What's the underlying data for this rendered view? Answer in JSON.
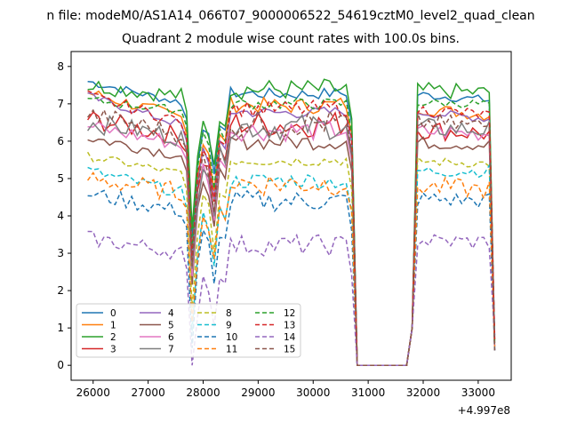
{
  "chart_data": {
    "type": "line",
    "figure_title": "n file: modeM0/AS1A14_066T07_9000006522_54619cztM0_level2_quad_clean",
    "title": "Quadrant 2 module wise count rates with 100.0s bins.",
    "xlabel": "",
    "ylabel": "",
    "x_offset_label": "+4.997e8",
    "xlim": [
      25600,
      33600
    ],
    "ylim": [
      -0.4,
      8.4
    ],
    "x_ticks": [
      {
        "value": 26000,
        "label": "26000"
      },
      {
        "value": 27000,
        "label": "27000"
      },
      {
        "value": 28000,
        "label": "28000"
      },
      {
        "value": 29000,
        "label": "29000"
      },
      {
        "value": 30000,
        "label": "30000"
      },
      {
        "value": 31000,
        "label": "31000"
      },
      {
        "value": 32000,
        "label": "32000"
      },
      {
        "value": 33000,
        "label": "33000"
      }
    ],
    "y_ticks": [
      {
        "value": 0,
        "label": "0"
      },
      {
        "value": 1,
        "label": "1"
      },
      {
        "value": 2,
        "label": "2"
      },
      {
        "value": 3,
        "label": "3"
      },
      {
        "value": 4,
        "label": "4"
      },
      {
        "value": 5,
        "label": "5"
      },
      {
        "value": 6,
        "label": "6"
      },
      {
        "value": 7,
        "label": "7"
      },
      {
        "value": 8,
        "label": "8"
      }
    ],
    "legend_position": "lower-left",
    "legend_columns": 4,
    "series": [
      {
        "name": "0",
        "color": "#1f77b4",
        "dash": "solid",
        "levels": [
          7.6,
          7.0,
          7.3,
          7.1
        ]
      },
      {
        "name": "1",
        "color": "#ff7f0e",
        "dash": "solid",
        "levels": [
          7.3,
          6.6,
          7.0,
          6.7
        ]
      },
      {
        "name": "2",
        "color": "#2ca02c",
        "dash": "solid",
        "levels": [
          7.5,
          7.2,
          7.4,
          7.3
        ]
      },
      {
        "name": "3",
        "color": "#d62728",
        "dash": "solid",
        "levels": [
          6.6,
          6.1,
          6.5,
          6.2
        ]
      },
      {
        "name": "4",
        "color": "#9467bd",
        "dash": "solid",
        "levels": [
          7.2,
          6.4,
          6.8,
          6.6
        ]
      },
      {
        "name": "5",
        "color": "#8c564b",
        "dash": "solid",
        "levels": [
          6.1,
          5.6,
          6.0,
          5.9
        ]
      },
      {
        "name": "6",
        "color": "#e377c2",
        "dash": "solid",
        "levels": [
          6.4,
          5.9,
          6.3,
          6.2
        ]
      },
      {
        "name": "7",
        "color": "#7f7f7f",
        "dash": "solid",
        "levels": [
          6.5,
          6.1,
          6.4,
          6.3
        ]
      },
      {
        "name": "8",
        "color": "#bcbd22",
        "dash": "dashed",
        "levels": [
          5.6,
          5.1,
          5.5,
          5.4
        ]
      },
      {
        "name": "9",
        "color": "#17becf",
        "dash": "dashed",
        "levels": [
          5.2,
          4.6,
          4.9,
          5.2
        ]
      },
      {
        "name": "10",
        "color": "#1f77b4",
        "dash": "dashed",
        "levels": [
          4.6,
          4.1,
          4.4,
          4.4
        ]
      },
      {
        "name": "11",
        "color": "#ff7f0e",
        "dash": "dashed",
        "levels": [
          5.0,
          4.6,
          4.9,
          4.7
        ]
      },
      {
        "name": "12",
        "color": "#2ca02c",
        "dash": "dashed",
        "levels": [
          7.1,
          6.8,
          7.0,
          7.0
        ]
      },
      {
        "name": "13",
        "color": "#d62728",
        "dash": "dashed",
        "levels": [
          7.2,
          6.5,
          6.9,
          6.7
        ]
      },
      {
        "name": "14",
        "color": "#9467bd",
        "dash": "dashed",
        "levels": [
          3.4,
          3.0,
          3.2,
          3.3
        ]
      },
      {
        "name": "15",
        "color": "#8c564b",
        "dash": "dashed",
        "levels": [
          6.7,
          6.2,
          6.5,
          6.4
        ]
      }
    ],
    "x_range": [
      25900,
      33300
    ],
    "bin_seconds": 100,
    "segments": [
      {
        "start": 25900,
        "end": 27700,
        "dip_to": 2.5
      },
      {
        "start": 27800,
        "end": 28300,
        "dip_to": 3.5
      },
      {
        "start": 28400,
        "end": 30700,
        "drop_to": 0.0
      },
      {
        "start": 30800,
        "end": 31700,
        "flat": 0.0
      },
      {
        "start": 31800,
        "end": 33300,
        "drop_to": 0.8
      }
    ]
  }
}
